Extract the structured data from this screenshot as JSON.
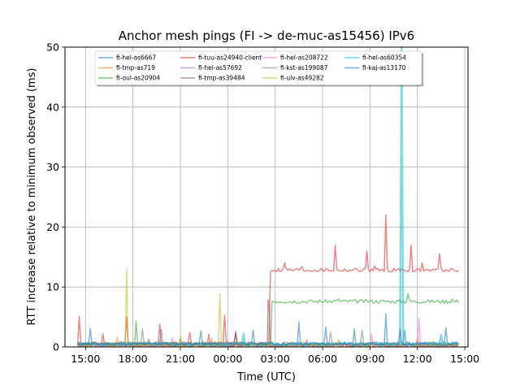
{
  "chart_data": {
    "type": "line",
    "title": "Anchor mesh pings (FI -> de-muc-as15456) IPv6",
    "xlabel": "Time (UTC)",
    "ylabel": "RTT increase relative to minimum observed (ms)",
    "ylim": [
      0,
      50
    ],
    "xlim": [
      "13:45",
      "15:15 (+1 day)"
    ],
    "x_range_hours": [
      -1.3,
      24.2
    ],
    "data_span_hours": [
      -0.5,
      23.6
    ],
    "xticks": [
      "15:00",
      "18:00",
      "21:00",
      "00:00",
      "03:00",
      "06:00",
      "09:00",
      "12:00",
      "15:00"
    ],
    "yticks": [
      0,
      10,
      20,
      30,
      40,
      50
    ],
    "grid": true,
    "legend_placement": "top-center",
    "legend_columns": 4,
    "series": [
      {
        "name": "fi-hel-as6667",
        "color": "#1f77b4",
        "baseline": 0.4,
        "level_change": null,
        "spikes": [
          [
            0.3,
            3.1
          ],
          [
            9.5,
            2.6
          ],
          [
            13.5,
            4.2
          ],
          [
            15.2,
            3.3
          ],
          [
            17.0,
            3.0
          ],
          [
            19.0,
            5.5
          ],
          [
            20.2,
            2.8
          ],
          [
            22.8,
            3.2
          ]
        ]
      },
      {
        "name": "fi-tmp-as719",
        "color": "#ff7f0e",
        "baseline": 0.3,
        "level_change": null,
        "spikes": [
          [
            2.0,
            1.6
          ],
          [
            8.0,
            1.4
          ],
          [
            16.0,
            1.2
          ],
          [
            21.0,
            1.5
          ]
        ]
      },
      {
        "name": "fi-oul-as20904",
        "color": "#2ca02c",
        "baseline": 0.5,
        "level_change": {
          "at_hour": 11.7,
          "level": 7.6
        },
        "spikes": [
          [
            3.2,
            4.3
          ],
          [
            20.4,
            8.9
          ],
          [
            16.0,
            8.0
          ],
          [
            23.2,
            8.0
          ]
        ]
      },
      {
        "name": "fi-tuu-as24940-client",
        "color": "#d62728",
        "baseline": 0.6,
        "level_change": {
          "at_hour": 11.6,
          "level": 12.8
        },
        "spikes": [
          [
            -0.4,
            5.1
          ],
          [
            1.1,
            2.2
          ],
          [
            2.6,
            5.0
          ],
          [
            4.7,
            3.8
          ],
          [
            6.6,
            2.4
          ],
          [
            7.8,
            2.1
          ],
          [
            8.8,
            5.3
          ],
          [
            9.5,
            2.3
          ],
          [
            12.6,
            14.0
          ],
          [
            15.8,
            17.0
          ],
          [
            17.8,
            16.0
          ],
          [
            19.0,
            22.0
          ],
          [
            20.6,
            17.0
          ],
          [
            21.3,
            14.0
          ],
          [
            22.4,
            15.5
          ],
          [
            13.7,
            13.4
          ],
          [
            18.3,
            13.5
          ]
        ]
      },
      {
        "name": "fi-hel-as57692",
        "color": "#9467bd",
        "baseline": 0.3,
        "level_change": null,
        "spikes": [
          [
            6.0,
            1.4
          ],
          [
            14.0,
            1.2
          ]
        ]
      },
      {
        "name": "fi-tmp-as39484",
        "color": "#8c564b",
        "baseline": 0.3,
        "level_change": null,
        "spikes": [
          [
            11.55,
            7.8
          ],
          [
            4.0,
            1.3
          ]
        ]
      },
      {
        "name": "fi-hel-as208722",
        "color": "#e377c2",
        "baseline": 0.2,
        "level_change": null,
        "spikes": [
          [
            18.1,
            2.2
          ],
          [
            21.1,
            4.8
          ],
          [
            5.5,
            1.5
          ]
        ]
      },
      {
        "name": "fi-kst-as199087",
        "color": "#7f7f7f",
        "baseline": 0.6,
        "level_change": null,
        "spikes": [
          [
            3.6,
            3.0
          ],
          [
            4.8,
            2.9
          ],
          [
            15.5,
            2.5
          ],
          [
            17.5,
            2.8
          ]
        ]
      },
      {
        "name": "fi-ulv-as49282",
        "color": "#bcbd22",
        "baseline": 0.3,
        "level_change": null,
        "spikes": [
          [
            2.6,
            12.9
          ],
          [
            8.5,
            8.9
          ],
          [
            6.0,
            1.8
          ]
        ]
      },
      {
        "name": "fi-hel-as60354",
        "color": "#17becf",
        "baseline": 0.5,
        "level_change": null,
        "spikes": [
          [
            20.0,
            50.0
          ],
          [
            22.5,
            2.0
          ],
          [
            10.0,
            2.2
          ]
        ]
      },
      {
        "name": "fi-kaj-as13170",
        "color": "#1f77b4",
        "baseline": 0.5,
        "level_change": null,
        "spikes": [
          [
            7.3,
            2.7
          ],
          [
            10.6,
            2.8
          ],
          [
            19.9,
            3.0
          ]
        ]
      }
    ]
  }
}
